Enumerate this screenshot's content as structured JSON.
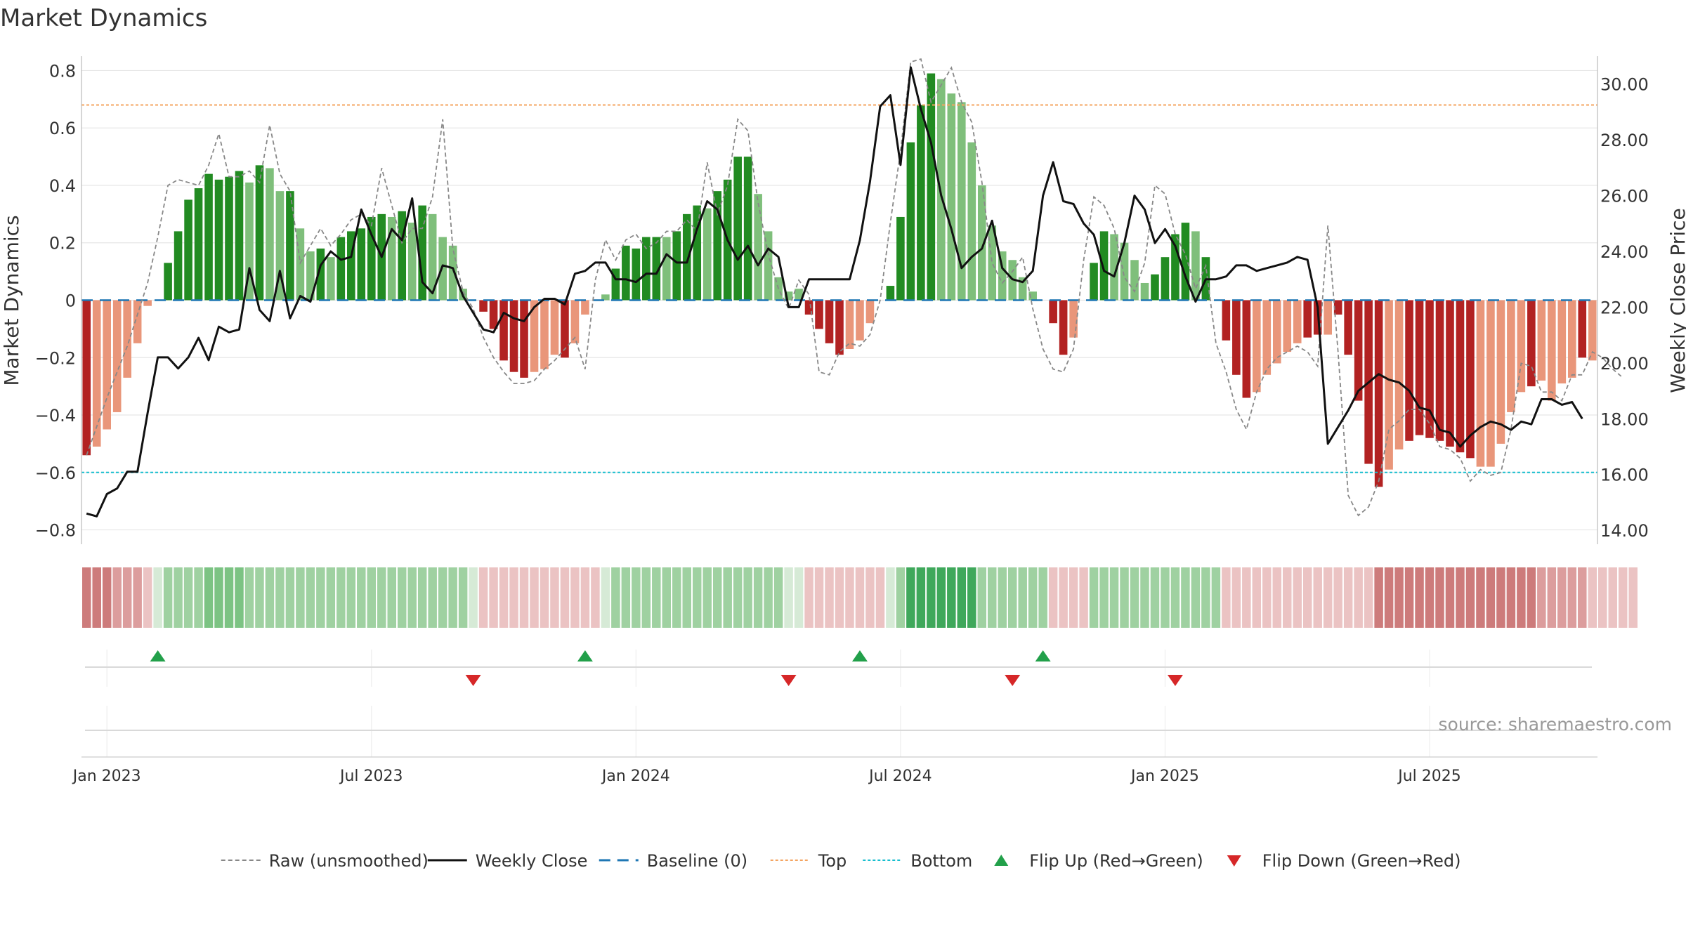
{
  "chart_data": {
    "type": "bar",
    "title": "Market Dynamics",
    "ylabel": "Market Dynamics",
    "y2label": "Weekly Close Price",
    "ylim": [
      -0.85,
      0.85
    ],
    "y2lim": [
      13.5,
      31.0
    ],
    "y_ticks": [
      "−0.8",
      "−0.6",
      "−0.4",
      "−0.2",
      "0",
      "0.2",
      "0.4",
      "0.6",
      "0.8"
    ],
    "y_tick_values": [
      -0.8,
      -0.6,
      -0.4,
      -0.2,
      0,
      0.2,
      0.4,
      0.6,
      0.8
    ],
    "y2_ticks": [
      "14.00",
      "16.00",
      "18.00",
      "20.00",
      "22.00",
      "24.00",
      "26.00",
      "28.00",
      "30.00"
    ],
    "y2_tick_values": [
      14,
      16,
      18,
      20,
      22,
      24,
      26,
      28,
      30
    ],
    "x_ticks": [
      "Jan 2023",
      "Jul 2023",
      "Jan 2024",
      "Jul 2024",
      "Jan 2025",
      "Jul 2025"
    ],
    "x_tick_weeks": [
      2,
      28,
      54,
      80,
      106,
      132
    ],
    "top_level": 0.68,
    "bottom_level": -0.6,
    "baseline": 0,
    "grid": true,
    "legend_position": "bottom",
    "source": "source: sharemaestro.com",
    "legend": [
      {
        "key": "raw",
        "label": "Raw (unsmoothed)"
      },
      {
        "key": "close",
        "label": "Weekly Close"
      },
      {
        "key": "baseline",
        "label": "Baseline (0)"
      },
      {
        "key": "top",
        "label": "Top"
      },
      {
        "key": "bottom",
        "label": "Bottom"
      },
      {
        "key": "flip_up",
        "label": "Flip Up (Red→Green)"
      },
      {
        "key": "flip_down",
        "label": "Flip Down (Green→Red)"
      }
    ],
    "colors": {
      "dark_green": "#228b22",
      "light_green": "#7fbf7b",
      "dark_red": "#b22222",
      "light_red": "#e9967a",
      "close": "#111111",
      "raw": "#888888",
      "baseline": "#1f77b4",
      "top": "#f4a460",
      "bottom": "#17becf",
      "flip_up": "#22a04a",
      "flip_down": "#d62728"
    },
    "bar_values": [
      -0.54,
      -0.51,
      -0.45,
      -0.39,
      -0.27,
      -0.15,
      -0.02,
      0,
      0.13,
      0.24,
      0.35,
      0.39,
      0.44,
      0.42,
      0.43,
      0.45,
      0.41,
      0.47,
      0.46,
      0.38,
      0.38,
      0.25,
      0.17,
      0.18,
      0.15,
      0.22,
      0.24,
      0.25,
      0.29,
      0.3,
      0.29,
      0.31,
      0.27,
      0.33,
      0.3,
      0.22,
      0.19,
      0.04,
      0,
      -0.04,
      -0.1,
      -0.21,
      -0.25,
      -0.27,
      -0.25,
      -0.24,
      -0.19,
      -0.2,
      -0.15,
      -0.05,
      0,
      0.02,
      0.11,
      0.19,
      0.18,
      0.22,
      0.22,
      0.22,
      0.24,
      0.3,
      0.33,
      0.32,
      0.38,
      0.42,
      0.5,
      0.5,
      0.37,
      0.24,
      0.08,
      0.03,
      0.04,
      -0.05,
      -0.1,
      -0.15,
      -0.19,
      -0.17,
      -0.14,
      -0.08,
      0,
      0.05,
      0.29,
      0.55,
      0.68,
      0.79,
      0.77,
      0.72,
      0.69,
      0.55,
      0.4,
      0.26,
      0.17,
      0.14,
      0.08,
      0.03,
      0,
      -0.08,
      -0.19,
      -0.13,
      0,
      0.13,
      0.24,
      0.23,
      0.2,
      0.14,
      0.06,
      0.09,
      0.15,
      0.23,
      0.27,
      0.24,
      0.15,
      0,
      -0.14,
      -0.26,
      -0.34,
      -0.32,
      -0.26,
      -0.22,
      -0.18,
      -0.15,
      -0.13,
      -0.12,
      -0.12,
      -0.05,
      -0.19,
      -0.35,
      -0.57,
      -0.65,
      -0.59,
      -0.52,
      -0.49,
      -0.47,
      -0.48,
      -0.49,
      -0.51,
      -0.53,
      -0.55,
      -0.58,
      -0.58,
      -0.5,
      -0.39,
      -0.32,
      -0.3,
      -0.28,
      -0.35,
      -0.29,
      -0.27,
      -0.2,
      -0.21
    ],
    "bar_shade": [
      1,
      0,
      0,
      0,
      0,
      0,
      0,
      0,
      1,
      1,
      1,
      1,
      1,
      1,
      1,
      1,
      0,
      1,
      0,
      0,
      1,
      0,
      0,
      1,
      0,
      1,
      1,
      1,
      1,
      1,
      0,
      1,
      0,
      1,
      0,
      0,
      0,
      0,
      0,
      1,
      1,
      1,
      1,
      1,
      0,
      0,
      0,
      1,
      0,
      0,
      0,
      0,
      1,
      1,
      1,
      1,
      1,
      0,
      1,
      1,
      1,
      0,
      1,
      1,
      1,
      1,
      0,
      0,
      0,
      0,
      0,
      1,
      1,
      1,
      1,
      0,
      0,
      0,
      0,
      1,
      1,
      1,
      1,
      1,
      0,
      0,
      0,
      0,
      0,
      0,
      0,
      0,
      0,
      0,
      0,
      1,
      1,
      0,
      0,
      1,
      1,
      0,
      0,
      0,
      0,
      1,
      1,
      1,
      1,
      0,
      1,
      0,
      1,
      1,
      1,
      0,
      0,
      0,
      0,
      0,
      1,
      1,
      0,
      1,
      1,
      1,
      1,
      1,
      0,
      0,
      1,
      1,
      1,
      1,
      1,
      1,
      1,
      0,
      0,
      0,
      0,
      0,
      1,
      0,
      0,
      0,
      0,
      1
    ],
    "close_values": [
      14.6,
      14.5,
      15.3,
      15.5,
      16.1,
      16.1,
      18.2,
      20.2,
      20.2,
      19.8,
      20.2,
      20.9,
      20.1,
      21.3,
      21.1,
      21.2,
      23.4,
      21.9,
      21.5,
      23.3,
      21.6,
      22.4,
      22.2,
      23.5,
      24.0,
      23.7,
      23.8,
      25.5,
      24.6,
      23.8,
      24.8,
      24.4,
      25.9,
      22.9,
      22.5,
      23.5,
      23.4,
      22.4,
      21.8,
      21.2,
      21.1,
      21.8,
      21.6,
      21.5,
      22.0,
      22.3,
      22.3,
      22.1,
      23.2,
      23.3,
      23.6,
      23.6,
      23.0,
      23.0,
      22.9,
      23.2,
      23.2,
      23.9,
      23.6,
      23.6,
      24.8,
      25.8,
      25.5,
      24.4,
      23.7,
      24.2,
      23.5,
      24.1,
      23.8,
      22.0,
      22.0,
      23.0,
      23.0,
      23.0,
      23.0,
      23.0,
      24.4,
      26.5,
      29.2,
      29.6,
      27.1,
      30.6,
      29.1,
      27.9,
      26.0,
      24.8,
      23.4,
      23.8,
      24.1,
      25.1,
      23.4,
      23.0,
      22.9,
      23.3,
      26.0,
      27.2,
      25.8,
      25.7,
      25.0,
      24.6,
      23.3,
      23.1,
      24.3,
      26.0,
      25.5,
      24.3,
      24.8,
      24.2,
      23.1,
      22.2,
      23.0,
      23.0,
      23.1,
      23.5,
      23.5,
      23.3,
      23.4,
      23.5,
      23.6,
      23.8,
      23.7,
      22.0,
      17.1,
      17.7,
      18.3,
      19.0,
      19.3,
      19.6,
      19.4,
      19.3,
      19.0,
      18.4,
      18.3,
      17.6,
      17.5,
      17.0,
      17.4,
      17.7,
      17.9,
      17.8,
      17.6,
      17.9,
      17.8,
      18.7,
      18.7,
      18.5,
      18.6,
      18.0
    ],
    "raw_values": [
      -0.54,
      -0.44,
      -0.34,
      -0.25,
      -0.16,
      -0.05,
      0.06,
      0.22,
      0.4,
      0.42,
      0.41,
      0.4,
      0.47,
      0.58,
      0.43,
      0.43,
      0.45,
      0.41,
      0.61,
      0.44,
      0.38,
      0.13,
      0.19,
      0.25,
      0.19,
      0.23,
      0.28,
      0.3,
      0.26,
      0.46,
      0.33,
      0.2,
      0.25,
      0.25,
      0.36,
      0.63,
      0.18,
      0.03,
      -0.03,
      -0.13,
      -0.2,
      -0.25,
      -0.29,
      -0.29,
      -0.28,
      -0.24,
      -0.21,
      -0.17,
      -0.13,
      -0.24,
      0.07,
      0.21,
      0.14,
      0.21,
      0.23,
      0.18,
      0.2,
      0.24,
      0.24,
      0.28,
      0.24,
      0.48,
      0.3,
      0.4,
      0.63,
      0.59,
      0.34,
      0.16,
      0.04,
      -0.03,
      0.07,
      0.02,
      -0.25,
      -0.26,
      -0.18,
      -0.15,
      -0.16,
      -0.12,
      0,
      0.27,
      0.52,
      0.83,
      0.84,
      0.69,
      0.75,
      0.81,
      0.69,
      0.62,
      0.41,
      0.13,
      0.06,
      0.1,
      0.15,
      -0.03,
      -0.17,
      -0.24,
      -0.25,
      -0.17,
      0.14,
      0.36,
      0.33,
      0.25,
      0.08,
      0.03,
      0.13,
      0.4,
      0.37,
      0.23,
      0.16,
      0.04,
      0.12,
      -0.15,
      -0.25,
      -0.38,
      -0.45,
      -0.32,
      -0.24,
      -0.2,
      -0.18,
      -0.16,
      -0.18,
      -0.23,
      0.26,
      -0.18,
      -0.68,
      -0.75,
      -0.72,
      -0.63,
      -0.45,
      -0.42,
      -0.38,
      -0.38,
      -0.43,
      -0.51,
      -0.52,
      -0.55,
      -0.63,
      -0.59,
      -0.61,
      -0.6,
      -0.45,
      -0.22,
      -0.23,
      -0.32,
      -0.32,
      -0.35,
      -0.26,
      -0.26,
      -0.18,
      -0.2,
      -0.24,
      -0.27
    ],
    "heat_levels": [
      -3,
      -3,
      -3,
      -2,
      -2,
      -2,
      -1,
      0,
      1,
      1,
      1,
      1,
      2,
      2,
      2,
      2,
      1,
      1,
      1,
      1,
      1,
      1,
      1,
      1,
      1,
      1,
      1,
      1,
      1,
      1,
      1,
      1,
      1,
      1,
      1,
      1,
      1,
      1,
      0,
      -1,
      -1,
      -1,
      -1,
      -1,
      -1,
      -1,
      -1,
      -1,
      -1,
      -1,
      -1,
      0,
      1,
      1,
      1,
      1,
      1,
      1,
      1,
      1,
      1,
      1,
      1,
      1,
      1,
      1,
      1,
      1,
      1,
      0,
      0,
      -1,
      -1,
      -1,
      -1,
      -1,
      -1,
      -1,
      -1,
      0,
      1,
      3,
      3,
      3,
      3,
      3,
      3,
      3,
      1,
      1,
      1,
      1,
      1,
      1,
      1,
      -1,
      -1,
      -1,
      -1,
      1,
      1,
      1,
      1,
      1,
      1,
      1,
      1,
      1,
      1,
      1,
      1,
      1,
      -1,
      -1,
      -1,
      -1,
      -1,
      -1,
      -1,
      -1,
      -1,
      -1,
      -1,
      -1,
      -1,
      -1,
      -1,
      -3,
      -3,
      -3,
      -3,
      -3,
      -3,
      -3,
      -3,
      -3,
      -3,
      -3,
      -3,
      -3,
      -3,
      -3,
      -3,
      -2,
      -2,
      -2,
      -2,
      -2,
      -1,
      -1,
      -1,
      -1,
      -1
    ],
    "flips": [
      {
        "week": 7,
        "direction": "up"
      },
      {
        "week": 38,
        "direction": "down"
      },
      {
        "week": 49,
        "direction": "up"
      },
      {
        "week": 69,
        "direction": "down"
      },
      {
        "week": 76,
        "direction": "up"
      },
      {
        "week": 91,
        "direction": "down"
      },
      {
        "week": 94,
        "direction": "up"
      },
      {
        "week": 107,
        "direction": "down"
      }
    ]
  }
}
